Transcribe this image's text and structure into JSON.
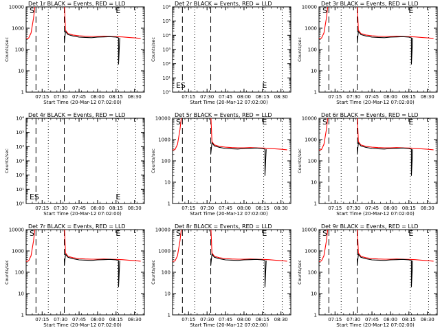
{
  "chart_data": [
    {
      "type": "line",
      "title": "Det 1r BLACK = Events, RED = LLD",
      "xlabel": "Start Time (20-Mar-12 07:02:00)",
      "ylabel": "Counts/sec",
      "ylog": true,
      "ylim": [
        1,
        10000
      ],
      "yticks": [
        "1",
        "10",
        "100",
        "1000",
        "10000"
      ],
      "xticks": [
        "07:15",
        "07:30",
        "07:45",
        "08:00",
        "08:15",
        "08:30"
      ],
      "markers": [
        {
          "text": "S",
          "x": "07:07"
        },
        {
          "text": "E",
          "x": "08:17"
        }
      ],
      "empty": false
    },
    {
      "type": "line",
      "title": "Det 2r BLACK = Events, RED = LLD",
      "xlabel": "Start Time (20-Mar-12 07:02:00)",
      "ylabel": "Counts/sec",
      "ylog": true,
      "ylim": [
        1,
        1000000
      ],
      "yticks": [
        "10⁰",
        "10¹",
        "10²",
        "10³",
        "10⁴",
        "10⁵",
        "10⁶"
      ],
      "xticks": [
        "07:15",
        "07:30",
        "07:45",
        "08:00",
        "08:15",
        "08:30"
      ],
      "markers": [
        {
          "text": "ES",
          "x": "07:07"
        },
        {
          "text": "E",
          "x": "08:17"
        }
      ],
      "empty": true
    },
    {
      "type": "line",
      "title": "Det 3r BLACK = Events, RED = LLD",
      "xlabel": "Start Time (20-Mar-12 07:02:00)",
      "ylabel": "Counts/sec",
      "ylog": true,
      "ylim": [
        1,
        10000
      ],
      "yticks": [
        "1",
        "10",
        "100",
        "1000",
        "10000"
      ],
      "xticks": [
        "07:15",
        "07:30",
        "07:45",
        "08:00",
        "08:15",
        "08:30"
      ],
      "markers": [
        {
          "text": "S",
          "x": "07:07"
        },
        {
          "text": "E",
          "x": "08:17"
        }
      ],
      "empty": false
    },
    {
      "type": "line",
      "title": "Det 4r BLACK = Events, RED = LLD",
      "xlabel": "Start Time (20-Mar-12 07:02:00)",
      "ylabel": "Counts/sec",
      "ylog": true,
      "ylim": [
        1,
        1000000
      ],
      "yticks": [
        "10⁰",
        "10¹",
        "10²",
        "10³",
        "10⁴",
        "10⁵",
        "10⁶"
      ],
      "xticks": [
        "07:15",
        "07:30",
        "07:45",
        "08:00",
        "08:15",
        "08:30"
      ],
      "markers": [
        {
          "text": "ES",
          "x": "07:07"
        },
        {
          "text": "E",
          "x": "08:17"
        }
      ],
      "empty": true
    },
    {
      "type": "line",
      "title": "Det 5r BLACK = Events, RED = LLD",
      "xlabel": "Start Time (20-Mar-12 07:02:00)",
      "ylabel": "Counts/sec",
      "ylog": true,
      "ylim": [
        1,
        10000
      ],
      "yticks": [
        "1",
        "10",
        "100",
        "1000",
        "10000"
      ],
      "xticks": [
        "07:15",
        "07:30",
        "07:45",
        "08:00",
        "08:15",
        "08:30"
      ],
      "markers": [
        {
          "text": "S",
          "x": "07:07"
        },
        {
          "text": "E",
          "x": "08:17"
        }
      ],
      "empty": false
    },
    {
      "type": "line",
      "title": "Det 6r BLACK = Events, RED = LLD",
      "xlabel": "Start Time (20-Mar-12 07:02:00)",
      "ylabel": "Counts/sec",
      "ylog": true,
      "ylim": [
        1,
        10000
      ],
      "yticks": [
        "1",
        "10",
        "100",
        "1000",
        "10000"
      ],
      "xticks": [
        "07:15",
        "07:30",
        "07:45",
        "08:00",
        "08:15",
        "08:30"
      ],
      "markers": [
        {
          "text": "S",
          "x": "07:07"
        },
        {
          "text": "E",
          "x": "08:17"
        }
      ],
      "empty": false
    },
    {
      "type": "line",
      "title": "Det 7r BLACK = Events, RED = LLD",
      "xlabel": "Start Time (20-Mar-12 07:02:00)",
      "ylabel": "Counts/sec",
      "ylog": true,
      "ylim": [
        1,
        10000
      ],
      "yticks": [
        "1",
        "10",
        "100",
        "1000",
        "10000"
      ],
      "xticks": [
        "07:15",
        "07:30",
        "07:45",
        "08:00",
        "08:15",
        "08:30"
      ],
      "markers": [
        {
          "text": "S",
          "x": "07:07"
        },
        {
          "text": "E",
          "x": "08:17"
        }
      ],
      "empty": false
    },
    {
      "type": "line",
      "title": "Det 8r BLACK = Events, RED = LLD",
      "xlabel": "Start Time (20-Mar-12 07:02:00)",
      "ylabel": "Counts/sec",
      "ylog": true,
      "ylim": [
        1,
        10000
      ],
      "yticks": [
        "1",
        "10",
        "100",
        "1000",
        "10000"
      ],
      "xticks": [
        "07:15",
        "07:30",
        "07:45",
        "08:00",
        "08:15",
        "08:30"
      ],
      "markers": [
        {
          "text": "S",
          "x": "07:07"
        },
        {
          "text": "E",
          "x": "08:17"
        }
      ],
      "empty": false
    },
    {
      "type": "line",
      "title": "Det 9r BLACK = Events, RED = LLD",
      "xlabel": "Start Time (20-Mar-12 07:02:00)",
      "ylabel": "Counts/sec",
      "ylog": true,
      "ylim": [
        1,
        10000
      ],
      "yticks": [
        "1",
        "10",
        "100",
        "1000",
        "10000"
      ],
      "xticks": [
        "07:15",
        "07:30",
        "07:45",
        "08:00",
        "08:15",
        "08:30"
      ],
      "markers": [
        {
          "text": "S",
          "x": "07:07"
        },
        {
          "text": "E",
          "x": "08:17"
        }
      ],
      "empty": false
    }
  ],
  "common": {
    "xrange": [
      "07:02",
      "08:38"
    ],
    "dashed_lines": [
      "07:10",
      "07:33"
    ],
    "dotted_lines": [
      "07:20",
      "08:16",
      "08:31"
    ],
    "colors": {
      "events": "#000000",
      "lld": "#ff0000",
      "axes": "#000000"
    },
    "lld_series": {
      "x": [
        "07:02",
        "07:04",
        "07:06",
        "07:08",
        "07:09",
        "07:10",
        "07:33",
        "07:34",
        "07:36",
        "07:40",
        "07:45",
        "07:50",
        "07:55",
        "08:00",
        "08:05",
        "08:10",
        "08:15",
        "08:20",
        "08:25",
        "08:30",
        "08:35"
      ],
      "y": [
        320,
        340,
        600,
        3000,
        9000,
        20000,
        20000,
        800,
        560,
        480,
        440,
        420,
        410,
        410,
        420,
        410,
        400,
        390,
        370,
        350,
        330
      ]
    },
    "events_series": {
      "x": [
        "07:33",
        "07:34",
        "07:36",
        "07:40",
        "07:45",
        "07:50",
        "07:55",
        "08:00",
        "08:05",
        "08:10",
        "08:15",
        "08:17",
        "08:17",
        "08:18"
      ],
      "y": [
        200,
        700,
        500,
        430,
        380,
        370,
        360,
        380,
        390,
        400,
        380,
        350,
        20,
        350
      ]
    }
  }
}
